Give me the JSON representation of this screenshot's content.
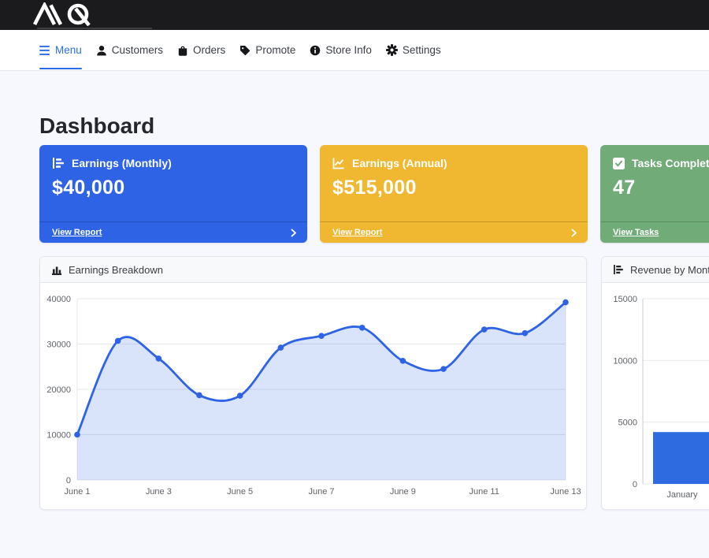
{
  "header": {
    "brand": "AQ"
  },
  "nav": {
    "active_color": "#2a6ce8",
    "items": [
      {
        "label": "Menu",
        "icon": "hamburger-icon",
        "active": true
      },
      {
        "label": "Customers",
        "icon": "person-icon",
        "active": false
      },
      {
        "label": "Orders",
        "icon": "bag-icon",
        "active": false
      },
      {
        "label": "Promote",
        "icon": "tag-icon",
        "active": false
      },
      {
        "label": "Store Info",
        "icon": "info-circle-icon",
        "active": false
      },
      {
        "label": "Settings",
        "icon": "gear-icon",
        "active": false
      }
    ]
  },
  "page": {
    "title": "Dashboard"
  },
  "stat_cards": [
    {
      "title": "Earnings (Monthly)",
      "value": "$40,000",
      "link_label": "View Report",
      "color": "#2e63e6",
      "icon": "bar-chart-steps-icon"
    },
    {
      "title": "Earnings (Annual)",
      "value": "$515,000",
      "link_label": "View Report",
      "color": "#f0b831",
      "icon": "line-chart-icon"
    },
    {
      "title": "Tasks Completed",
      "value": "47",
      "link_label": "View Tasks",
      "color": "#71ab78",
      "icon": "check-square-icon"
    }
  ],
  "chart_data": [
    {
      "type": "area",
      "title": "Earnings Breakdown",
      "x": [
        "June 1",
        "June 2",
        "June 3",
        "June 4",
        "June 5",
        "June 6",
        "June 7",
        "June 8",
        "June 9",
        "June 10",
        "June 11",
        "June 12",
        "June 13"
      ],
      "values": [
        10000,
        30700,
        26800,
        18700,
        18600,
        29200,
        31800,
        33600,
        26300,
        24500,
        33200,
        32400,
        39200
      ],
      "xtick_labels": [
        "June 1",
        "June 3",
        "June 5",
        "June 7",
        "June 9",
        "June 11",
        "June 13"
      ],
      "xlabel": "",
      "ylabel": "",
      "ylim": [
        0,
        40000
      ],
      "yticks": [
        0,
        10000,
        20000,
        30000,
        40000
      ],
      "line_color": "#2e63e6",
      "fill_color": "rgba(46,99,230,0.18)",
      "point_color": "#2e63e6",
      "grid": true,
      "legend": "none"
    },
    {
      "type": "bar",
      "title": "Revenue by Month",
      "categories": [
        "January"
      ],
      "values": [
        4200
      ],
      "xlabel": "",
      "ylabel": "",
      "ylim": [
        0,
        15000
      ],
      "yticks": [
        0,
        5000,
        10000,
        15000
      ],
      "bar_color": "#2f6be0",
      "grid": true,
      "legend": "none"
    }
  ]
}
